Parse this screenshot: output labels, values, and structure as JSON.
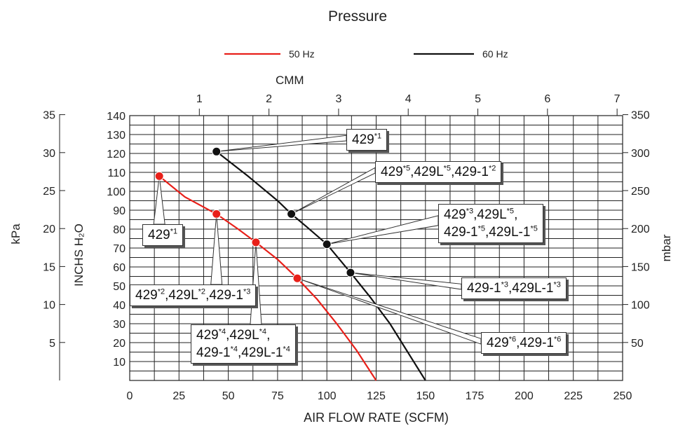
{
  "chart_data": {
    "type": "line",
    "title": "Pressure",
    "xlabel": "AIR FLOW RATE (SCFM)",
    "xlabel_top": "CMM",
    "ylabel": "INCHS H₂O",
    "ylabel_left": "kPa",
    "ylabel_right": "mbar",
    "xlim": [
      0,
      250
    ],
    "ylim": [
      0,
      140
    ],
    "x_ticks": [
      0,
      25,
      50,
      75,
      100,
      125,
      150,
      175,
      200,
      225,
      250
    ],
    "y_ticks": [
      10,
      20,
      30,
      40,
      50,
      60,
      70,
      80,
      90,
      100,
      110,
      120,
      130,
      140
    ],
    "cmm_ticks": [
      1,
      2,
      3,
      4,
      5,
      6,
      7
    ],
    "kpa_ticks": [
      5,
      10,
      15,
      20,
      25,
      30,
      35
    ],
    "mbar_ticks": [
      50,
      100,
      150,
      200,
      250,
      300,
      350
    ],
    "grid": true,
    "legend_position": "top-center",
    "series": [
      {
        "name": "50 Hz",
        "color": "#e8201a",
        "x": [
          15,
          28,
          44,
          55,
          64,
          75,
          85,
          95,
          105,
          115,
          125
        ],
        "y": [
          108,
          97,
          88,
          80,
          73,
          64,
          54,
          43,
          30,
          16,
          0
        ],
        "markers": [
          {
            "x": 15,
            "y": 108,
            "callout": 0
          },
          {
            "x": 44,
            "y": 88,
            "callout": 1
          },
          {
            "x": 64,
            "y": 73,
            "callout": 2
          },
          {
            "x": 85,
            "y": 54,
            "callout": 3
          }
        ]
      },
      {
        "name": "60 Hz",
        "color": "#111111",
        "x": [
          44,
          60,
          75,
          82,
          90,
          100,
          112,
          122,
          132,
          141,
          150
        ],
        "y": [
          121,
          108,
          95,
          88,
          81,
          72,
          57,
          44,
          30,
          15,
          0
        ],
        "markers": [
          {
            "x": 44,
            "y": 121,
            "callout": 4
          },
          {
            "x": 82,
            "y": 88,
            "callout": 5
          },
          {
            "x": 100,
            "y": 72,
            "callout": 6
          },
          {
            "x": 112,
            "y": 57,
            "callout": 7
          }
        ]
      }
    ],
    "callouts": [
      {
        "lines": [
          "429<sup>*1</sup>"
        ],
        "targets": [
          0
        ]
      },
      {
        "lines": [
          "429<sup>*2</sup>,429L<sup>*2</sup>,429-1<sup>*3</sup>"
        ],
        "targets": [
          1
        ]
      },
      {
        "lines": [
          "429<sup>*4</sup>,429L<sup>*4</sup>,",
          "429-1<sup>*4</sup>,429L-1<sup>*4</sup>"
        ],
        "targets": [
          2
        ]
      },
      {
        "lines": [
          "429<sup>*6</sup>,429-1<sup>*6</sup>"
        ],
        "targets": [
          3
        ]
      },
      {
        "lines": [
          "429<sup>*1</sup>"
        ],
        "targets": [
          4
        ]
      },
      {
        "lines": [
          "429<sup>*5</sup>,429L<sup>*5</sup>,429-1<sup>*2</sup>"
        ],
        "targets": [
          5
        ]
      },
      {
        "lines": [
          "429<sup>*3</sup>,429L<sup>*5</sup>,",
          "429-1<sup>*5</sup>,429L-1<sup>*5</sup>"
        ],
        "targets": [
          6
        ]
      },
      {
        "lines": [
          "429-1<sup>*3</sup>,429L-1<sup>*3</sup>"
        ],
        "targets": [
          7
        ]
      }
    ]
  }
}
